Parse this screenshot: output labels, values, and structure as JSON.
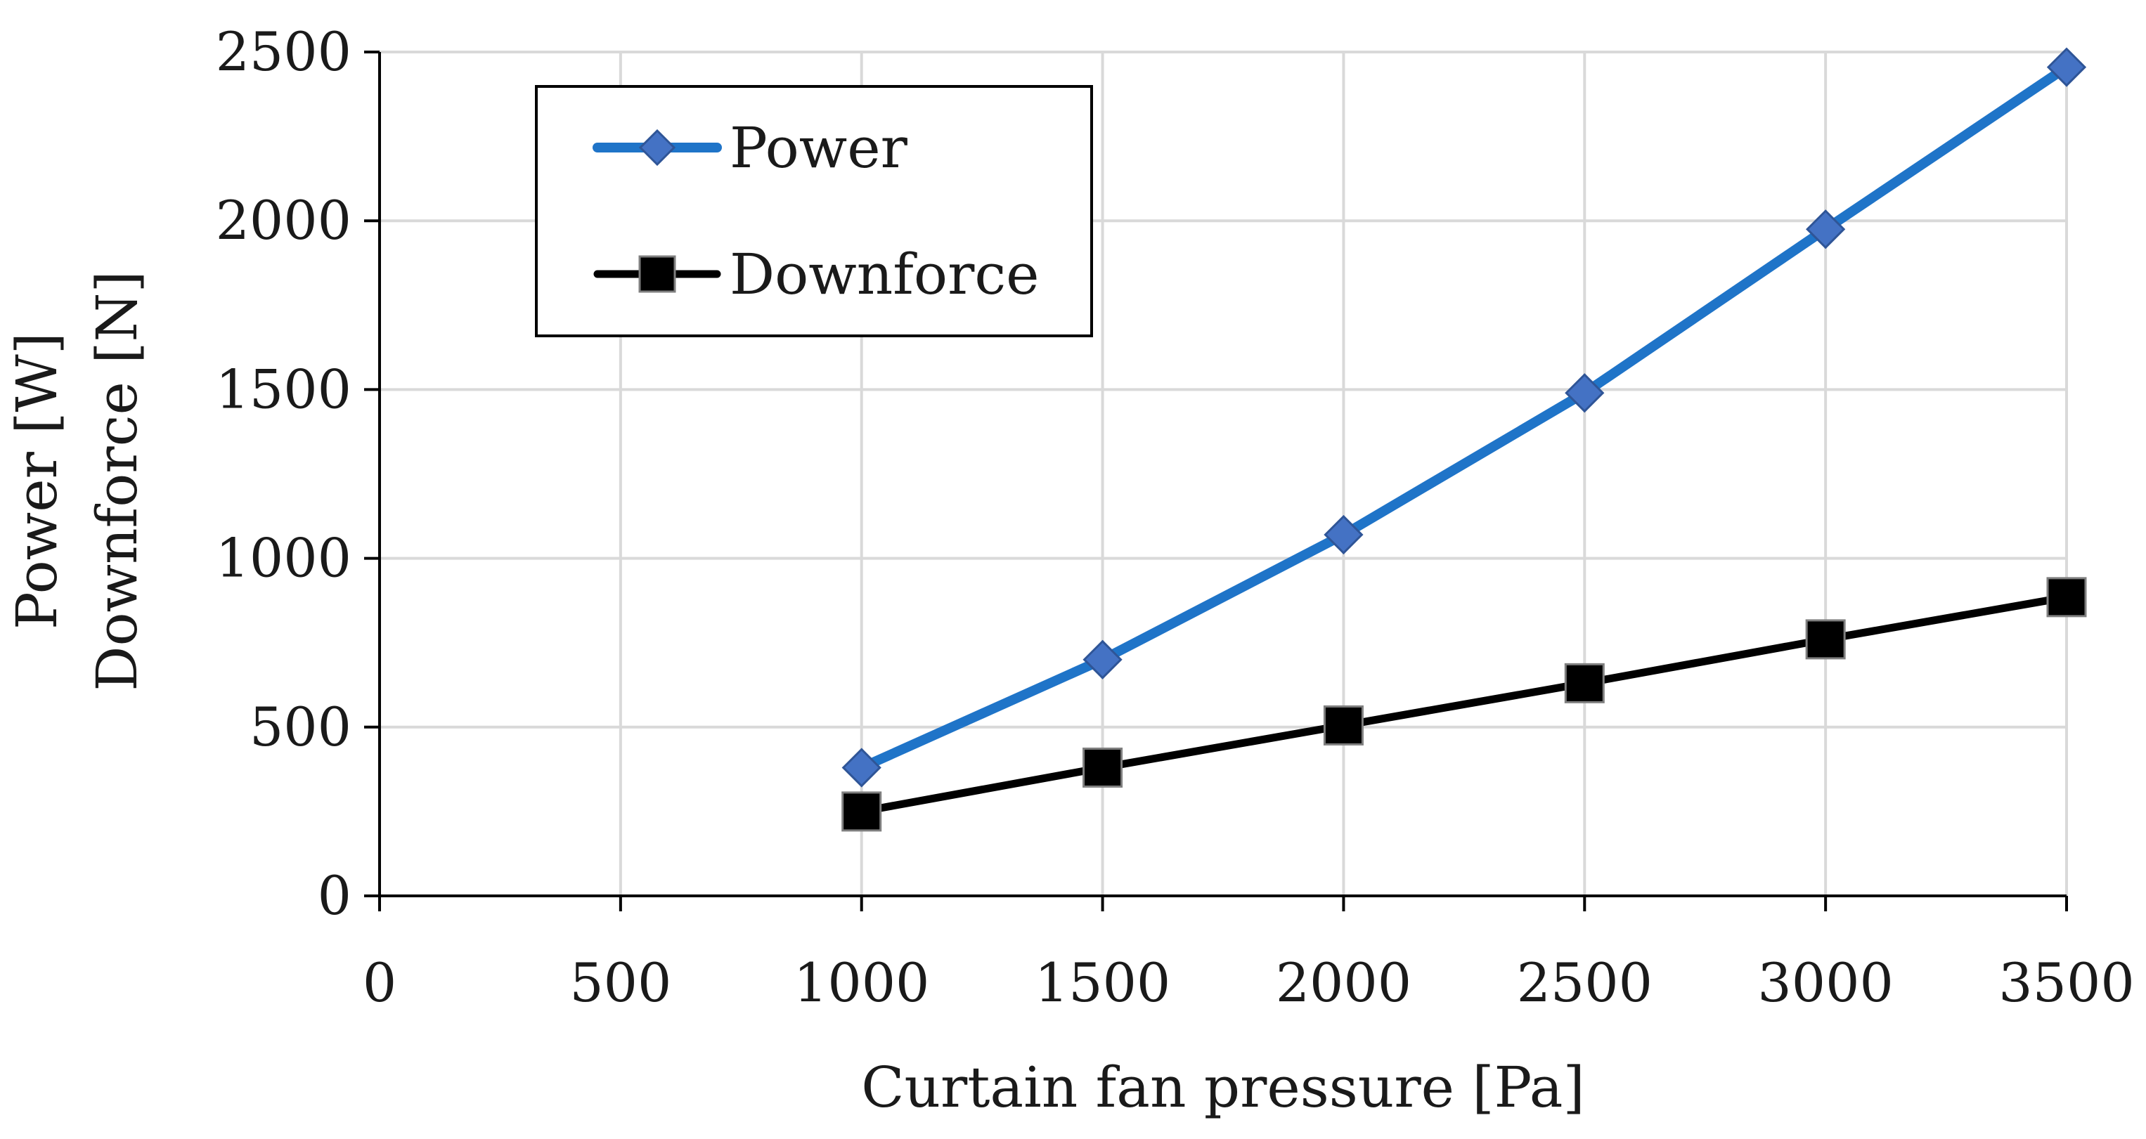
{
  "chart_data": {
    "type": "line",
    "title": "",
    "x": [
      1000,
      1500,
      2000,
      2500,
      3000,
      3500
    ],
    "series": [
      {
        "name": "Power",
        "values": [
          380,
          700,
          1070,
          1490,
          1975,
          2455
        ],
        "color": "#1f74c8",
        "marker": "diamond",
        "marker_color": "#4472c4"
      },
      {
        "name": "Downforce",
        "values": [
          250,
          380,
          505,
          630,
          760,
          885
        ],
        "color": "#000000",
        "marker": "square",
        "marker_color": "#000000"
      }
    ],
    "xlabel": "Curtain fan pressure [Pa]",
    "ylabel_lines": [
      "Power [W]",
      "Downforce [N]"
    ],
    "xlim": [
      0,
      3500
    ],
    "ylim": [
      0,
      2500
    ],
    "xticks": [
      0,
      500,
      1000,
      1500,
      2000,
      2500,
      3000,
      3500
    ],
    "yticks": [
      0,
      500,
      1000,
      1500,
      2000,
      2500
    ],
    "grid": true,
    "legend_position": "top-left"
  }
}
